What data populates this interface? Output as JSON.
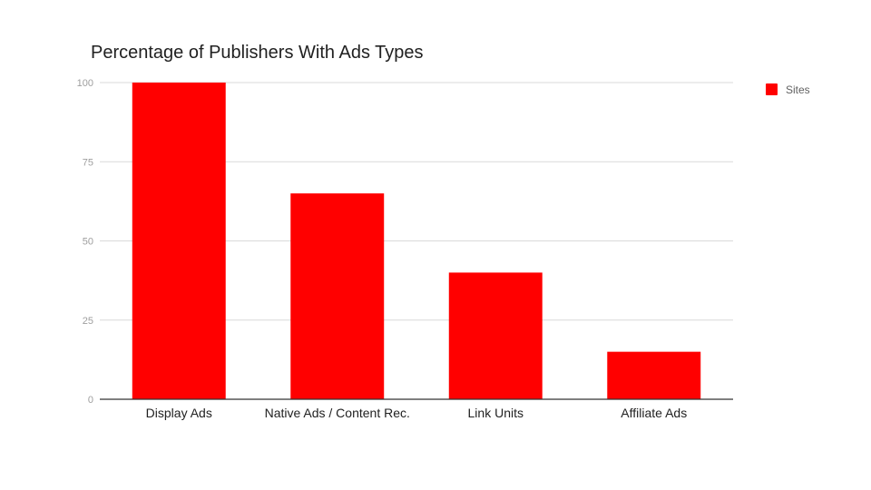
{
  "colors": {
    "bar": "#ff0000",
    "grid": "#d9d9d9",
    "axis": "#333333"
  },
  "chart_data": {
    "type": "bar",
    "title": "Percentage of Publishers With Ads Types",
    "xlabel": "",
    "ylabel": "",
    "categories": [
      "Display Ads",
      "Native Ads / Content Rec.",
      "Link Units",
      "Affiliate Ads"
    ],
    "series": [
      {
        "name": "Sites",
        "values": [
          100,
          65,
          40,
          15
        ]
      }
    ],
    "yticks": [
      0,
      25,
      50,
      75,
      100
    ],
    "ylim": [
      0,
      100
    ],
    "grid": true,
    "legend_position": "top-right"
  }
}
